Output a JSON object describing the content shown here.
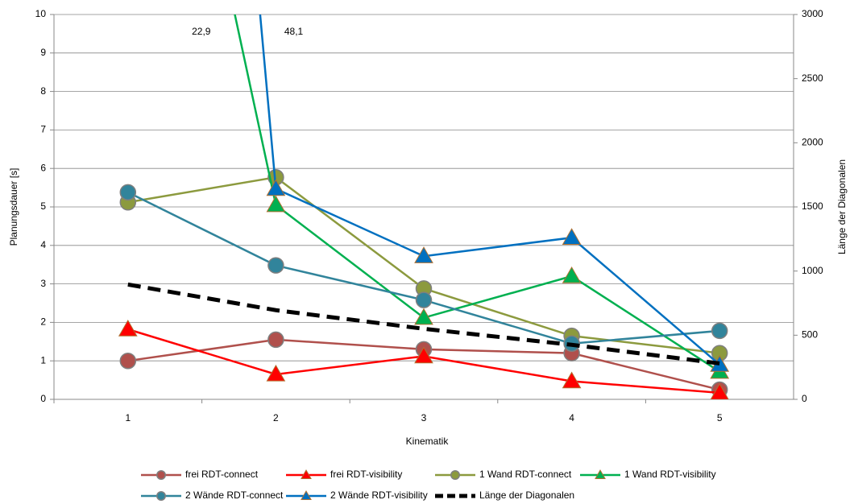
{
  "chart_data": {
    "type": "line",
    "x_label": "Kinematik",
    "y_label": "Planungsdauer [s]",
    "y2_label": "Länge der Diagonalen",
    "categories": [
      "1",
      "2",
      "3",
      "4",
      "5"
    ],
    "ylim": [
      0,
      10
    ],
    "yticks": [
      0,
      1,
      2,
      3,
      4,
      5,
      6,
      7,
      8,
      9,
      10
    ],
    "y2lim": [
      0,
      3000
    ],
    "y2ticks": [
      0,
      500,
      1000,
      1500,
      2000,
      2500,
      3000
    ],
    "grid": true,
    "legend": "bottom",
    "series": [
      {
        "name": "frei RDT-connect",
        "color": "#b0504c",
        "marker": "circle",
        "values": [
          1.0,
          1.55,
          1.3,
          1.2,
          0.25
        ]
      },
      {
        "name": "frei RDT-visibility",
        "color": "#ff0000",
        "marker": "triangle",
        "values": [
          1.82,
          0.65,
          1.12,
          0.47,
          0.17
        ]
      },
      {
        "name": "1 Wand RDT-connect",
        "color": "#8c9a3e",
        "marker": "circle",
        "values": [
          5.12,
          5.77,
          2.88,
          1.65,
          1.2
        ]
      },
      {
        "name": "1 Wand RDT-visibility",
        "color": "#00b050",
        "marker": "triangle",
        "values": [
          22.9,
          5.05,
          2.12,
          3.2,
          0.72
        ],
        "value_labels": [
          "22,9",
          null,
          null,
          null,
          null
        ]
      },
      {
        "name": "2 Wände RDT-connect",
        "color": "#31849b",
        "marker": "circle",
        "values": [
          5.38,
          3.48,
          2.58,
          1.45,
          1.78
        ]
      },
      {
        "name": "2 Wände RDT-visibility",
        "color": "#0070c0",
        "marker": "triangle",
        "values": [
          48.1,
          5.47,
          3.72,
          4.2,
          0.9
        ],
        "value_labels": [
          "48,1",
          null,
          null,
          null,
          null
        ]
      },
      {
        "name": "Länge der Diagonalen",
        "color": "#000000",
        "marker": "none",
        "line_style": "dashed",
        "axis": "y2",
        "values": [
          895,
          695,
          550,
          425,
          280
        ]
      }
    ]
  }
}
